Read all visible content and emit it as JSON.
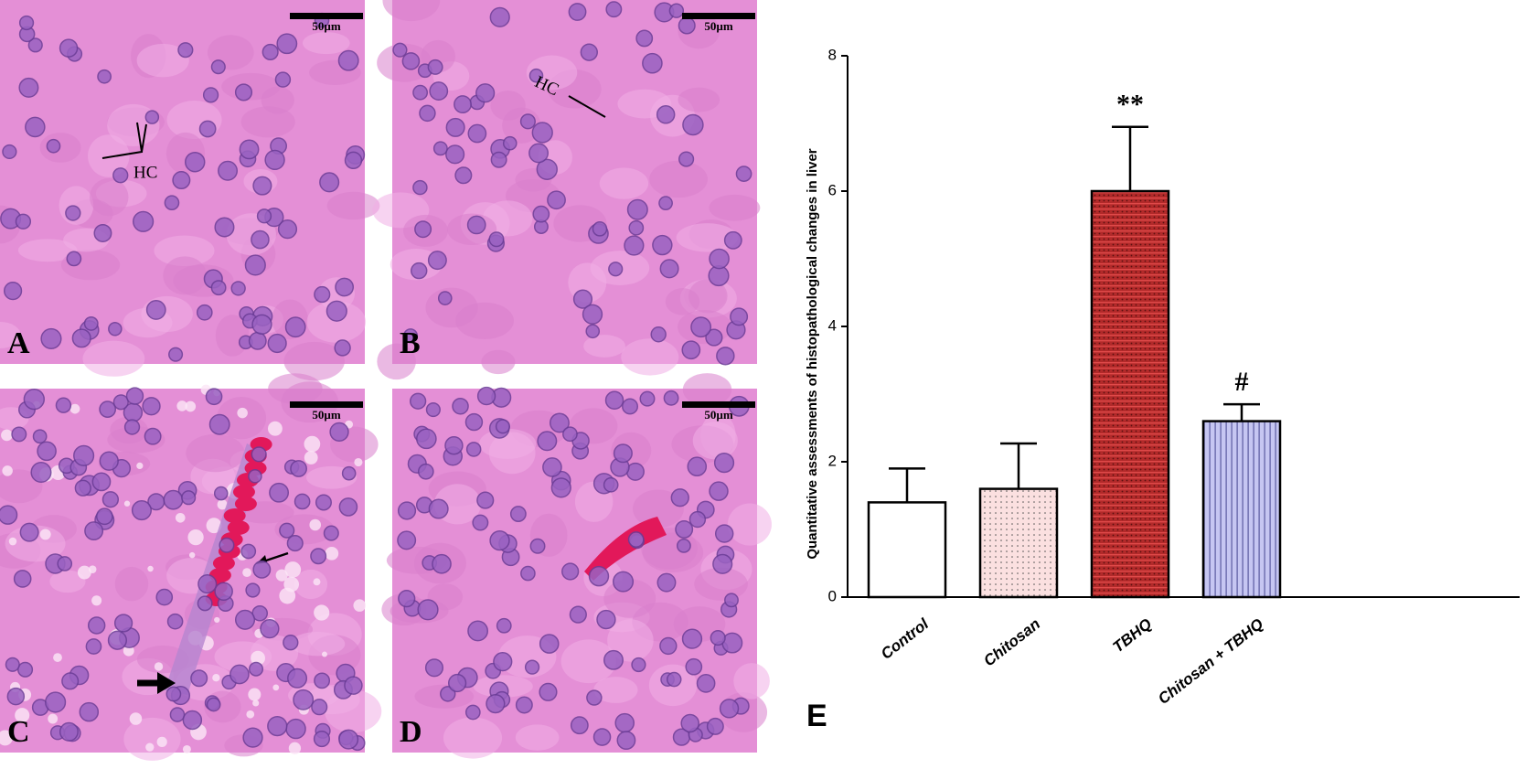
{
  "panels": [
    {
      "label": "A",
      "scale_bar": "50µm",
      "annotation": "HC"
    },
    {
      "label": "B",
      "scale_bar": "50µm",
      "annotation": "HC"
    },
    {
      "label": "C",
      "scale_bar": "50µm"
    },
    {
      "label": "D",
      "scale_bar": "50µm"
    }
  ],
  "chart_data": {
    "type": "bar",
    "panel_label": "E",
    "y_label": "Quantitative assessments of histopathological changes in liver",
    "categories": [
      "Control",
      "Chitosan",
      "TBHQ",
      "Chitosan + TBHQ"
    ],
    "values": [
      1.4,
      1.6,
      6.0,
      2.6
    ],
    "errors": [
      0.5,
      0.67,
      0.95,
      0.25
    ],
    "colors": [
      "#ffffff",
      "#fbe0e0",
      "#b22a2a",
      "#c6c6f2"
    ],
    "annotations": [
      {
        "category": "TBHQ",
        "text": "**"
      },
      {
        "category": "Chitosan + TBHQ",
        "text": "#"
      }
    ],
    "ylim": [
      0,
      8
    ],
    "yticks": [
      0,
      2,
      4,
      6,
      8
    ]
  }
}
